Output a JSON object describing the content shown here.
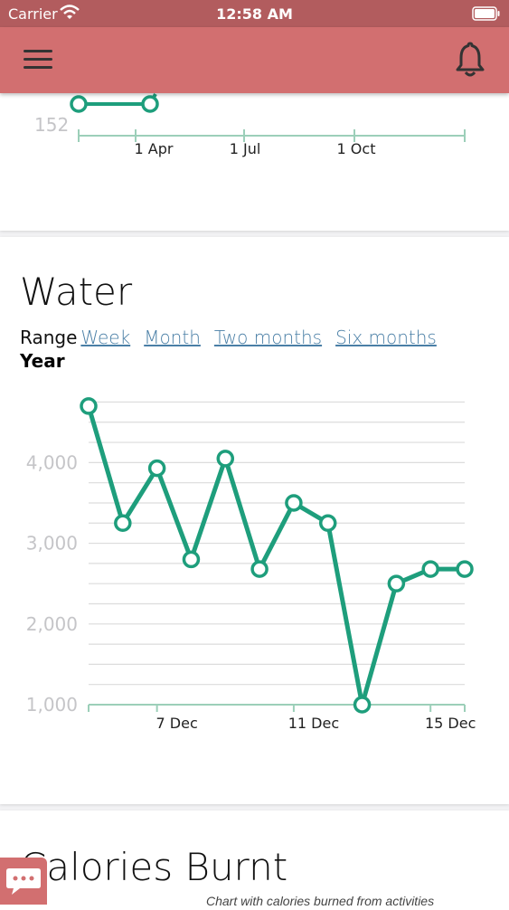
{
  "status_bar": {
    "carrier": "Carrier",
    "time": "12:58 AM"
  },
  "app_bar": {
    "menu_icon": "hamburger-menu-icon",
    "notification_icon": "bell-icon",
    "background_color": "#d26f70"
  },
  "weight_card": {
    "y_tick_visible": "152",
    "x_ticks": [
      "1 Apr",
      "1 Jul",
      "1 Oct"
    ]
  },
  "water_card": {
    "title": "Water",
    "range_label": "Range",
    "range_options": [
      "Week",
      "Month",
      "Two months",
      "Six months",
      "Year"
    ],
    "active_range": "Year"
  },
  "chart_data": {
    "type": "line",
    "x": [
      "5 Dec",
      "6 Dec",
      "7 Dec",
      "8 Dec",
      "9 Dec",
      "10 Dec",
      "11 Dec",
      "12 Dec",
      "13 Dec",
      "14 Dec",
      "15 Dec",
      "16 Dec"
    ],
    "x_tick_labels": [
      "7 Dec",
      "11 Dec",
      "15 Dec"
    ],
    "values": [
      4700,
      3250,
      3930,
      2800,
      4050,
      2680,
      3500,
      3250,
      1000,
      2500,
      2680,
      2680
    ],
    "y_tick_labels": [
      "1,000",
      "2,000",
      "3,000",
      "4,000"
    ],
    "ylim": [
      1000,
      4800
    ],
    "grid": true,
    "color": "#1e9e7c"
  },
  "calories_card": {
    "title": "Calories Burnt",
    "subtitle": "Chart with calories burned from activities"
  },
  "chat_fab": {
    "icon": "chat-bubble-icon"
  }
}
